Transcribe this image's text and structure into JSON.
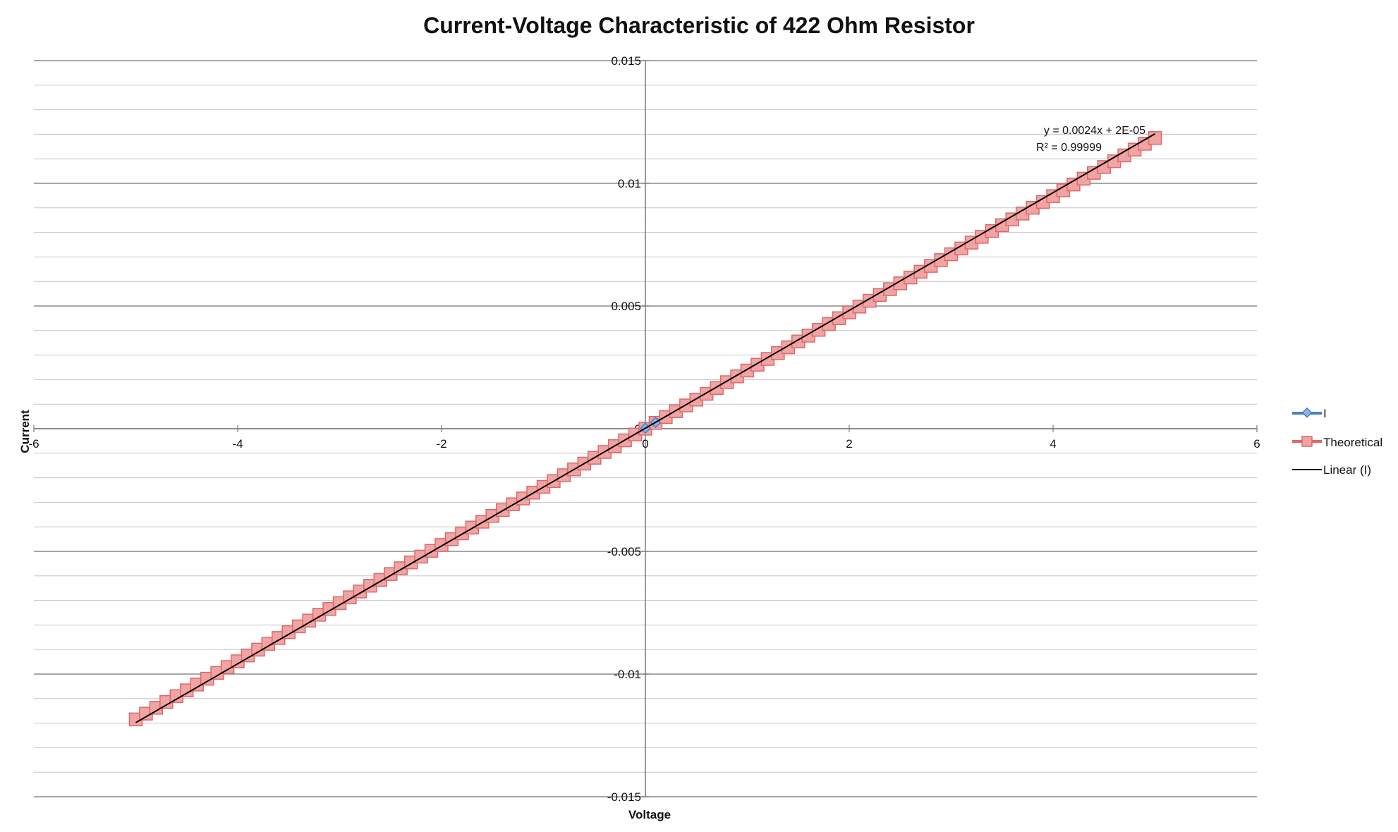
{
  "chart_data": {
    "type": "scatter",
    "title": "Current-Voltage Characteristic of 422 Ohm Resistor",
    "xlabel": "Voltage",
    "ylabel": "Current",
    "xlim": [
      -6,
      6
    ],
    "ylim": [
      -0.015,
      0.015
    ],
    "x_ticks": [
      -6,
      -4,
      -2,
      0,
      2,
      4,
      6
    ],
    "x_tick_labels": [
      "-6",
      "-4",
      "-2",
      "0",
      "2",
      "4",
      "6"
    ],
    "y_ticks": [
      -0.015,
      -0.01,
      -0.005,
      0,
      0.005,
      0.01,
      0.015
    ],
    "y_tick_labels": [
      "-0.015",
      "-0.01",
      "-0.005",
      "0",
      "0.005",
      "0.01",
      "0.015"
    ],
    "y_minor_step": 0.001,
    "grid": true,
    "legend_position": "right",
    "series": [
      {
        "name": "I",
        "color": "#4a7fc0",
        "marker": "diamond",
        "x": [
          0,
          0.1
        ],
        "y": [
          2e-05,
          0.00026
        ]
      },
      {
        "name": "Theoretical",
        "color": "#e06666",
        "marker": "square",
        "x_start": -5,
        "x_end": 5,
        "x_step": 0.1,
        "slope": 0.0023697,
        "intercept": 0
      }
    ],
    "trendline": {
      "name": "Linear (I)",
      "color": "#000000",
      "slope": 0.0024,
      "intercept": 2e-05,
      "x_range": [
        -5,
        5
      ],
      "equation": "y = 0.0024x + 2E-05",
      "r_squared": "R² = 0.99999"
    }
  }
}
